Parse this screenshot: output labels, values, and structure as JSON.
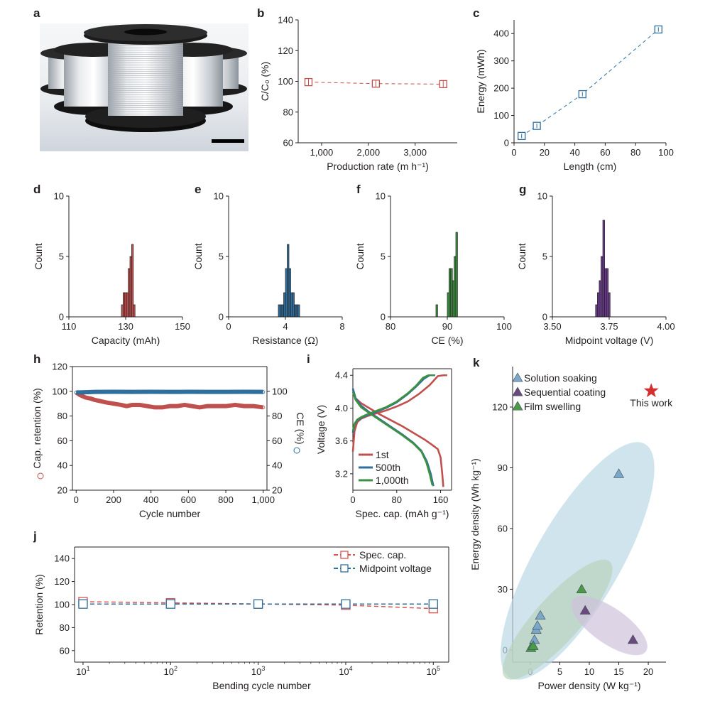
{
  "panels": [
    {
      "id": "a",
      "label": "a",
      "type": "photo"
    },
    {
      "id": "b",
      "label": "b",
      "type": "scatter",
      "xlabel": "Production rate (m h⁻¹)",
      "ylabel": "C/C₀ (%)",
      "xlim": [
        500,
        3900
      ],
      "ylim": [
        60,
        140
      ],
      "xticks": [
        1000,
        2000,
        3000
      ],
      "xtick_labels": [
        "1,000",
        "2,000",
        "3,000"
      ],
      "yticks": [
        60,
        80,
        100,
        120,
        140
      ],
      "color": "#c0504d",
      "x": [
        720,
        2160,
        3600
      ],
      "y": [
        99.5,
        98.5,
        98.2
      ],
      "err": [
        2,
        2,
        2
      ],
      "linestyle": "dashed"
    },
    {
      "id": "c",
      "label": "c",
      "type": "scatter",
      "xlabel": "Length (cm)",
      "ylabel": "Energy (mWh)",
      "xlim": [
        0,
        100
      ],
      "ylim": [
        0,
        450
      ],
      "xticks": [
        0,
        20,
        40,
        60,
        80,
        100
      ],
      "xtick_labels": [
        "0",
        "20",
        "40",
        "60",
        "80",
        "100"
      ],
      "yticks": [
        0,
        100,
        200,
        300,
        400
      ],
      "color": "#2e6f9e",
      "x": [
        5,
        15,
        45,
        95
      ],
      "y": [
        25,
        62,
        178,
        415
      ],
      "err": [
        8,
        8,
        8,
        8
      ],
      "linestyle": "dashed"
    },
    {
      "id": "d",
      "label": "d",
      "type": "histogram",
      "xlabel": "Capacity (mAh)",
      "ylabel": "Count",
      "xlim": [
        110,
        150
      ],
      "ylim": [
        0,
        10
      ],
      "xticks": [
        110,
        130,
        150
      ],
      "yticks": [
        0,
        5,
        10
      ],
      "color": "#c0504d",
      "binwidth": 0.6,
      "bins": [
        128.5,
        129.1,
        129.7,
        130.3,
        130.9,
        131.5,
        132.1,
        132.7
      ],
      "counts": [
        1,
        2,
        2,
        2,
        4,
        5,
        6,
        1
      ]
    },
    {
      "id": "e",
      "label": "e",
      "type": "histogram",
      "xlabel": "Resistance (Ω)",
      "ylabel": "Count",
      "xlim": [
        0,
        8
      ],
      "ylim": [
        0,
        10
      ],
      "xticks": [
        0,
        4,
        8
      ],
      "yticks": [
        0,
        5,
        10
      ],
      "color": "#2e6f9e",
      "binwidth": 0.125,
      "bins": [
        3.5,
        3.625,
        3.75,
        3.875,
        4.0,
        4.125,
        4.25,
        4.375,
        4.5,
        4.625,
        4.75,
        4.875
      ],
      "counts": [
        1,
        1,
        1,
        2,
        4,
        6,
        4,
        2,
        2,
        1,
        1,
        1
      ]
    },
    {
      "id": "f",
      "label": "f",
      "type": "histogram",
      "xlabel": "CE (%)",
      "ylabel": "Count",
      "xlim": [
        80,
        100
      ],
      "ylim": [
        0,
        10
      ],
      "xticks": [
        80,
        90,
        100
      ],
      "yticks": [
        0,
        5,
        10
      ],
      "color": "#3d9140",
      "binwidth": 0.3,
      "bins": [
        88.0,
        90.0,
        90.3,
        90.6,
        90.9,
        91.2,
        91.5
      ],
      "counts": [
        1,
        2,
        4,
        4,
        3,
        5,
        7
      ]
    },
    {
      "id": "g",
      "label": "g",
      "type": "histogram",
      "xlabel": "Midpoint voltage (V)",
      "ylabel": "Count",
      "xlim": [
        3.5,
        4.0
      ],
      "ylim": [
        0,
        10
      ],
      "xticks": [
        3.5,
        3.75,
        4.0
      ],
      "xtick_labels": [
        "3.50",
        "3.75",
        "4.00"
      ],
      "yticks": [
        0,
        5,
        10
      ],
      "color": "#6a3d8f",
      "binwidth": 0.008,
      "bins": [
        3.69,
        3.698,
        3.706,
        3.714,
        3.722,
        3.73,
        3.738,
        3.746
      ],
      "counts": [
        1,
        2,
        3,
        5,
        8,
        4,
        4,
        2
      ]
    },
    {
      "id": "h",
      "label": "h",
      "type": "line",
      "xlabel": "Cycle number",
      "ylabel": "Cap. retention (%)",
      "y2label": "CE (%)",
      "xlim": [
        -20,
        1020
      ],
      "ylim": [
        20,
        120
      ],
      "y2lim": [
        20,
        120
      ],
      "xticks": [
        0,
        200,
        400,
        600,
        800,
        1000
      ],
      "xtick_labels": [
        "0",
        "200",
        "400",
        "600",
        "800",
        "1,000"
      ],
      "yticks": [
        20,
        40,
        60,
        80,
        100,
        120
      ],
      "y2ticks": [
        20,
        40,
        60,
        80,
        100
      ],
      "series": [
        {
          "name": "Cap. retention",
          "color": "#c0504d",
          "x": [
            0,
            20,
            50,
            80,
            100,
            130,
            160,
            200,
            240,
            270,
            300,
            340,
            380,
            420,
            460,
            500,
            540,
            580,
            620,
            660,
            700,
            750,
            800,
            850,
            900,
            950,
            1000
          ],
          "y": [
            99,
            97,
            95,
            94,
            93,
            92,
            91,
            90,
            89,
            88,
            89,
            89,
            88,
            87,
            87,
            88,
            88,
            89,
            88,
            87,
            88,
            88,
            88,
            89,
            88,
            88,
            87
          ]
        },
        {
          "name": "CE",
          "color": "#2e6f9e",
          "x": [
            0,
            100,
            200,
            300,
            400,
            500,
            600,
            700,
            800,
            900,
            1000
          ],
          "y": [
            99,
            99.5,
            99.6,
            99.5,
            99.6,
            99.5,
            99.6,
            99.5,
            99.5,
            99.6,
            99.5
          ]
        }
      ]
    },
    {
      "id": "i",
      "label": "i",
      "type": "line",
      "xlabel": "Spec. cap. (mAh g⁻¹)",
      "ylabel": "Voltage (V)",
      "xlim": [
        0,
        180
      ],
      "ylim": [
        3.0,
        4.48
      ],
      "xticks": [
        0,
        80,
        160
      ],
      "yticks": [
        3.2,
        3.6,
        4.0,
        4.4
      ],
      "ytick_labels": [
        "3.2",
        "3.6",
        "4.0",
        "4.4"
      ],
      "legend": [
        "1st",
        "500th",
        "1,000th"
      ],
      "series": [
        {
          "name": "1st",
          "color": "#c0504d",
          "charge": {
            "x": [
              0,
              3,
              8,
              15,
              25,
              40,
              60,
              80,
              100,
              120,
              140,
              155,
              165,
              172
            ],
            "y": [
              3.47,
              3.72,
              3.83,
              3.87,
              3.9,
              3.93,
              3.97,
              4.02,
              4.08,
              4.17,
              4.28,
              4.39,
              4.4,
              4.4
            ]
          },
          "discharge": {
            "x": [
              0,
              5,
              15,
              30,
              50,
              70,
              90,
              110,
              130,
              145,
              155,
              160,
              163,
              165
            ],
            "y": [
              4.22,
              4.12,
              4.06,
              4.0,
              3.92,
              3.85,
              3.78,
              3.7,
              3.62,
              3.55,
              3.5,
              3.4,
              3.2,
              3.04
            ]
          }
        },
        {
          "name": "500th",
          "color": "#2e6f9e",
          "charge": {
            "x": [
              0,
              3,
              8,
              15,
              25,
              40,
              60,
              80,
              100,
              115,
              130,
              140,
              150
            ],
            "y": [
              3.7,
              3.8,
              3.85,
              3.88,
              3.91,
              3.95,
              4.0,
              4.07,
              4.17,
              4.26,
              4.36,
              4.4,
              4.4
            ]
          },
          "discharge": {
            "x": [
              0,
              5,
              15,
              30,
              50,
              70,
              90,
              110,
              125,
              135,
              142,
              147
            ],
            "y": [
              4.24,
              4.12,
              4.03,
              3.95,
              3.86,
              3.77,
              3.68,
              3.58,
              3.48,
              3.35,
              3.2,
              3.05
            ]
          }
        },
        {
          "name": "1,000th",
          "color": "#3d9140",
          "charge": {
            "x": [
              0,
              3,
              8,
              15,
              25,
              40,
              60,
              80,
              100,
              115,
              128,
              138,
              148
            ],
            "y": [
              3.72,
              3.81,
              3.86,
              3.89,
              3.92,
              3.96,
              4.01,
              4.08,
              4.18,
              4.27,
              4.37,
              4.4,
              4.4
            ]
          },
          "discharge": {
            "x": [
              0,
              5,
              15,
              30,
              50,
              70,
              90,
              110,
              125,
              134,
              140,
              145
            ],
            "y": [
              4.2,
              4.1,
              4.01,
              3.94,
              3.85,
              3.76,
              3.67,
              3.57,
              3.47,
              3.34,
              3.2,
              3.06
            ]
          }
        }
      ]
    },
    {
      "id": "j",
      "label": "j",
      "type": "line",
      "xlabel": "Bending cycle number",
      "ylabel": "Retention (%)",
      "xscale": "log",
      "xlim": [
        8,
        150000
      ],
      "ylim": [
        50,
        150
      ],
      "yticks": [
        60,
        80,
        100,
        120,
        140
      ],
      "xticks": [
        10,
        100,
        1000,
        10000,
        100000
      ],
      "xtick_labels": [
        "10",
        "10",
        "10",
        "10",
        "10"
      ],
      "xtick_sups": [
        "1",
        "2",
        "3",
        "4",
        "5"
      ],
      "series": [
        {
          "name": "Spec. cap.",
          "color": "#d9534f",
          "x": [
            10,
            100,
            1000,
            10000,
            100000
          ],
          "y": [
            102.5,
            101.5,
            100.5,
            99.5,
            96.5
          ]
        },
        {
          "name": "Midpoint voltage",
          "color": "#2e6f9e",
          "x": [
            10,
            100,
            1000,
            10000,
            100000
          ],
          "y": [
            100.5,
            100.5,
            100.5,
            100.5,
            100.5
          ]
        }
      ]
    },
    {
      "id": "k",
      "label": "k",
      "type": "scatter",
      "xlabel": "Power density (W kg⁻¹)",
      "ylabel": "Energy density (Wh kg⁻¹)",
      "xlim": [
        -3,
        23
      ],
      "ylim": [
        -6,
        140
      ],
      "xticks": [
        0,
        5,
        10,
        15,
        20
      ],
      "yticks": [
        0,
        30,
        60,
        90,
        120
      ],
      "legend": [
        "Solution soaking",
        "Sequential coating",
        "Film swelling"
      ],
      "star_label": "This work",
      "series": [
        {
          "name": "Solution soaking",
          "color": "#7ba7c9",
          "x": [
            0.3,
            0.7,
            1.0,
            1.2,
            1.7,
            15
          ],
          "y": [
            2,
            5,
            10,
            12,
            17,
            87
          ]
        },
        {
          "name": "Sequential coating",
          "color": "#6a4a7c",
          "x": [
            9.3,
            17.4
          ],
          "y": [
            19.5,
            5
          ]
        },
        {
          "name": "Film swelling",
          "color": "#4a9a48",
          "x": [
            0.1,
            0.5,
            8.7
          ],
          "y": [
            1,
            2,
            30
          ]
        },
        {
          "name": "This work",
          "color": "#d32f2f",
          "x": [
            20.5
          ],
          "y": [
            128
          ]
        }
      ]
    }
  ]
}
